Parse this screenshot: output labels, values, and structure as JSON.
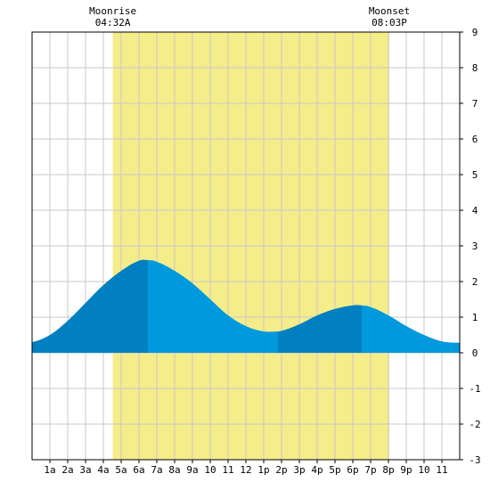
{
  "chart_data": {
    "type": "area",
    "title": "",
    "xlabel": "",
    "ylabel": "",
    "xlim": [
      0,
      24
    ],
    "ylim": [
      -3,
      9
    ],
    "grid": true,
    "x_tick_labels": [
      "1a",
      "2a",
      "3a",
      "4a",
      "5a",
      "6a",
      "7a",
      "8a",
      "9a",
      "10",
      "11",
      "12",
      "1p",
      "2p",
      "3p",
      "4p",
      "5p",
      "6p",
      "7p",
      "8p",
      "9p",
      "10",
      "11"
    ],
    "y_tick_labels": [
      "-3",
      "-2",
      "-1",
      "0",
      "1",
      "2",
      "3",
      "4",
      "5",
      "6",
      "7",
      "8",
      "9"
    ],
    "moon_window": {
      "start_hour": 4.53,
      "end_hour": 20.05,
      "color": "#f5ec8a"
    },
    "annotations": [
      {
        "label": "Moonrise",
        "time": "04:32A",
        "hour": 4.53
      },
      {
        "label": "Moonset",
        "time": "08:03P",
        "hour": 20.05
      }
    ],
    "rising_color": "#0080c0",
    "falling_color": "#0099dd",
    "series": [
      {
        "x": [
          0,
          1,
          2,
          3,
          4,
          5,
          6,
          6.5,
          7,
          8,
          9,
          10,
          11,
          12,
          13,
          13.8,
          14,
          15,
          16,
          17,
          18,
          18.5,
          19,
          20,
          21,
          22,
          23,
          24
        ],
        "y": [
          0.3,
          0.5,
          0.9,
          1.4,
          1.9,
          2.3,
          2.58,
          2.6,
          2.55,
          2.3,
          1.95,
          1.5,
          1.05,
          0.75,
          0.6,
          0.6,
          0.62,
          0.8,
          1.05,
          1.23,
          1.33,
          1.33,
          1.28,
          1.05,
          0.75,
          0.5,
          0.32,
          0.28
        ]
      }
    ],
    "phases": [
      {
        "from": 0,
        "to": 6.5,
        "trend": "rising"
      },
      {
        "from": 6.5,
        "to": 13.8,
        "trend": "falling"
      },
      {
        "from": 13.8,
        "to": 18.5,
        "trend": "rising"
      },
      {
        "from": 18.5,
        "to": 24,
        "trend": "falling"
      }
    ]
  }
}
